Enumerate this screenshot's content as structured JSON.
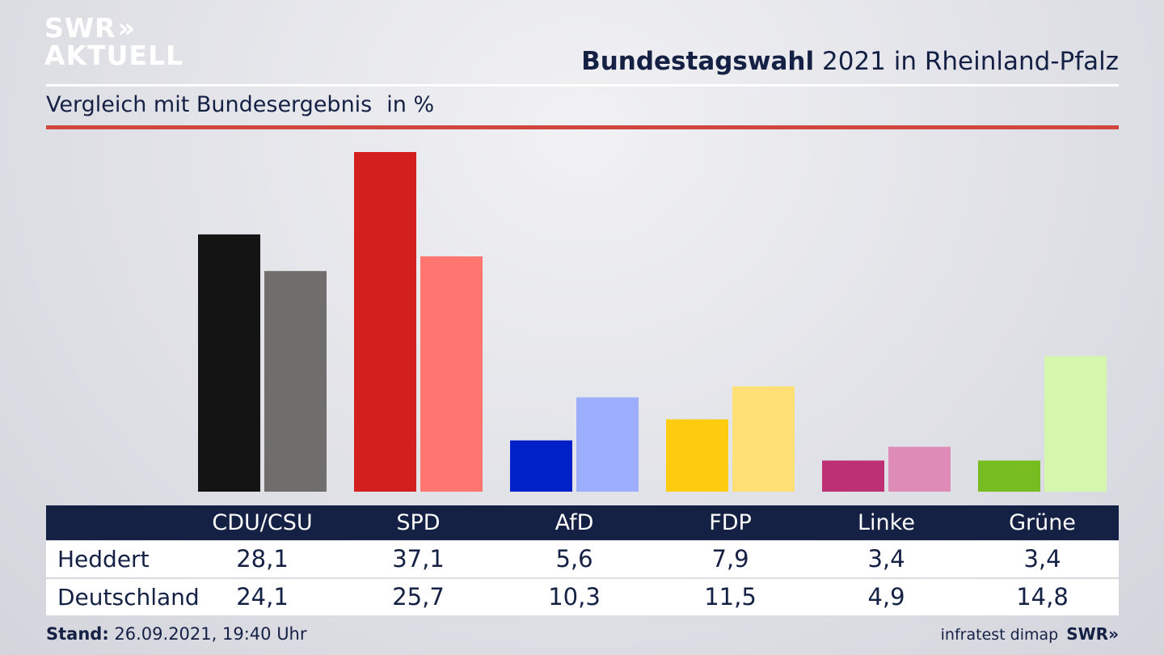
{
  "brand": {
    "line1": "SWR",
    "arrows": "»",
    "line2": "AKTUELL"
  },
  "header": {
    "title_bold": "Bundestagswahl",
    "title_rest": "2021 in Rheinland-Pfalz",
    "subtitle": "Vergleich mit Bundesergebnis",
    "unit": "in %"
  },
  "colors": {
    "CDU/CSU": [
      "#141414",
      "#6f6e6c"
    ],
    "SPD": [
      "#d41f1f",
      "#ff7570"
    ],
    "AfD": [
      "#0021c8",
      "#9eaefe"
    ],
    "FDP": [
      "#fdcb0f",
      "#fee074"
    ],
    "Linke": [
      "#bd3075",
      "#df8bb8"
    ],
    "Grüne": [
      "#77bd21",
      "#d5f6ad"
    ]
  },
  "chart_data": {
    "type": "bar",
    "categories": [
      "CDU/CSU",
      "SPD",
      "AfD",
      "FDP",
      "Linke",
      "Grüne"
    ],
    "series": [
      {
        "name": "Heddert",
        "values": [
          "28,1",
          "37,1",
          "5,6",
          "7,9",
          "3,4",
          "3,4"
        ],
        "numeric": [
          28.1,
          37.1,
          5.6,
          7.9,
          3.4,
          3.4
        ]
      },
      {
        "name": "Deutschland",
        "values": [
          "24,1",
          "25,7",
          "10,3",
          "11,5",
          "4,9",
          "14,8"
        ],
        "numeric": [
          24.1,
          25.7,
          10.3,
          11.5,
          4.9,
          14.8
        ]
      }
    ],
    "title": "Bundestagswahl 2021 in Rheinland-Pfalz",
    "subtitle": "Vergleich mit Bundesergebnis",
    "ylabel": "in %",
    "ylim": [
      0,
      37.1
    ]
  },
  "footer": {
    "stand_label": "Stand:",
    "stand_value": "26.09.2021, 19:40 Uhr",
    "source": "infratest dimap",
    "brand": "SWR",
    "brand_arrows": "»"
  }
}
